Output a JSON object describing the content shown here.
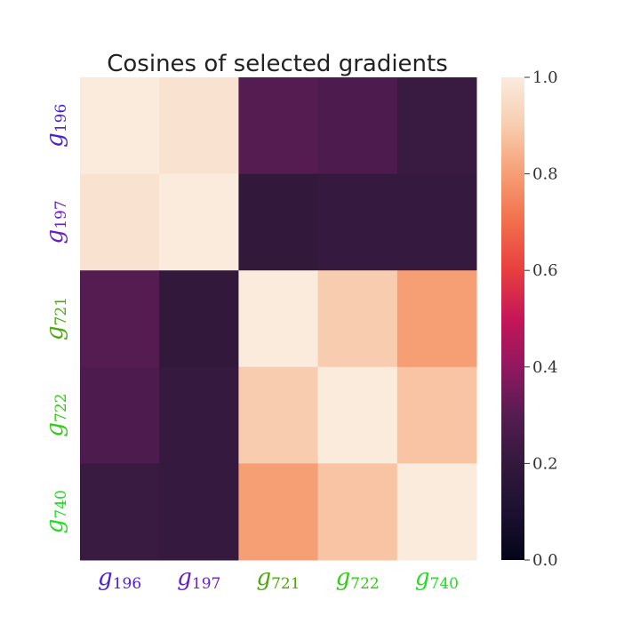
{
  "chart_data": {
    "type": "heatmap",
    "title": "Cosines of selected gradients",
    "labels": [
      {
        "base": "g",
        "sub": "196",
        "color": "#4b1fd8"
      },
      {
        "base": "g",
        "sub": "197",
        "color": "#6a1fc4"
      },
      {
        "base": "g",
        "sub": "721",
        "color": "#4fa80f"
      },
      {
        "base": "g",
        "sub": "722",
        "color": "#33cc14"
      },
      {
        "base": "g",
        "sub": "740",
        "color": "#22dd22"
      }
    ],
    "matrix": [
      [
        1.0,
        0.97,
        0.3,
        0.28,
        0.22
      ],
      [
        0.97,
        1.0,
        0.2,
        0.21,
        0.21
      ],
      [
        0.3,
        0.2,
        1.0,
        0.9,
        0.8
      ],
      [
        0.28,
        0.21,
        0.9,
        1.0,
        0.88
      ],
      [
        0.22,
        0.21,
        0.8,
        0.88,
        1.0
      ]
    ],
    "colorbar": {
      "range": [
        0.0,
        1.0
      ],
      "ticks": [
        "0.0",
        "0.2",
        "0.4",
        "0.6",
        "0.8",
        "1.0"
      ],
      "colormap": "rocket"
    }
  }
}
